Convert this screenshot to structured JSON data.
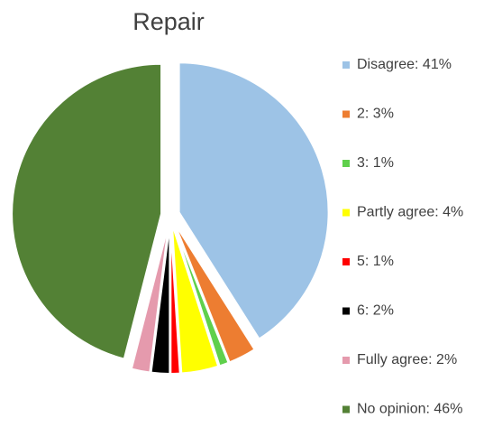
{
  "chart_data": {
    "type": "pie",
    "title": "Repair",
    "categories": [
      "Disagree: 41%",
      "2: 3%",
      "3: 1%",
      "Partly agree: 4%",
      "5: 1%",
      "6: 2%",
      "Fully agree: 2%",
      "No opinion: 46%"
    ],
    "values": [
      41,
      3,
      1,
      4,
      1,
      2,
      2,
      46
    ],
    "colors": [
      "#9dc3e6",
      "#ed7d31",
      "#5fd04c",
      "#ffff00",
      "#ff0000",
      "#000000",
      "#e59aad",
      "#538135"
    ],
    "legend": "right"
  }
}
